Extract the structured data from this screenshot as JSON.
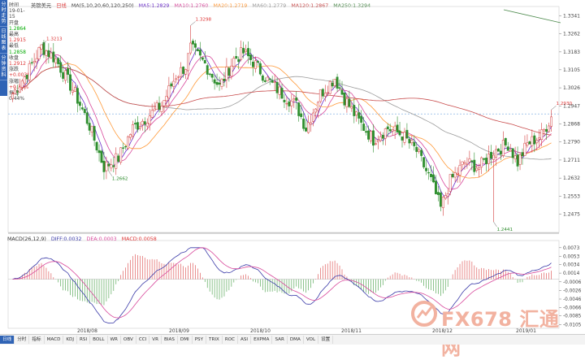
{
  "sidebar": {
    "tabs": [
      "分时走势",
      "日线图表",
      "分钟资料"
    ]
  },
  "info_panel": {
    "rows": [
      {
        "label": "时间",
        "value": "19-01-15"
      },
      {
        "label": "开盘",
        "value": "1.2864"
      },
      {
        "label": "最高",
        "value": "1.2915"
      },
      {
        "label": "最低",
        "value": "1.2858"
      },
      {
        "label": "收盘",
        "value": "1.2912"
      },
      {
        "label": "涨跌",
        "value": "+0.0038"
      },
      {
        "label": "涨幅",
        "value": "+0.30%"
      },
      {
        "label": "振幅",
        "value": "0.44%"
      }
    ]
  },
  "legend": {
    "symbol": "英镑美元",
    "period": "日线",
    "ma_params": "MA(5,10,20,60,120,250)",
    "ma5": "MA5:1.2829",
    "ma10": "MA10:1.2760",
    "ma20": "MA20:1.2719",
    "ma60": "MA60:1.2779",
    "ma120": "MA120:1.2867",
    "ma250": "MA250:1.3294"
  },
  "macd_legend": {
    "title": "MACD(26,12,9)",
    "diff": "DIFF:0.0032",
    "dea": "DEA:0.0003",
    "macd": "MACD:0.0058"
  },
  "price_axis": [
    "1.3341",
    "1.3262",
    "1.3183",
    "1.3105",
    "1.3026",
    "1.2947",
    "1.2868",
    "1.2790",
    "1.2711",
    "1.2632",
    "1.2553",
    "1.2475"
  ],
  "macd_axis": [
    "0.0073",
    "0.0053",
    "0.0034",
    "0.0014",
    "-0.0006",
    "-0.0026",
    "-0.0046",
    "-0.0066",
    "-0.0085",
    "-0.0105"
  ],
  "date_axis": [
    "2018/08",
    "2018/09",
    "2018/10",
    "2018/11",
    "2018/12",
    "2019/01"
  ],
  "annotations": {
    "high1": "1.3213",
    "high2": "1.3298",
    "low1": "1.2662",
    "low2": "1.2441",
    "last_high": "1.2930"
  },
  "toolbar": [
    "日线",
    "分时",
    "指标",
    "MACD",
    "KDJ",
    "RSI",
    "BOLL",
    "WR",
    "OBV",
    "CCI",
    "VR",
    "BIAS",
    "DMI",
    "PSY",
    "TRIX",
    "ROC",
    "ASI",
    "EXPMA",
    "SAR",
    "DMA",
    "VOL",
    "设置"
  ],
  "watermark": {
    "text": "FX678 汇通网"
  },
  "colors": {
    "up": "#d33b3b",
    "down": "#2f8f2f",
    "ma5": "#6a2cc9",
    "ma10": "#d8499c",
    "ma20": "#ff9a3a",
    "ma60": "#9a9a9a",
    "ma120": "#c84b4b",
    "ma250": "#4c8a4c"
  }
}
